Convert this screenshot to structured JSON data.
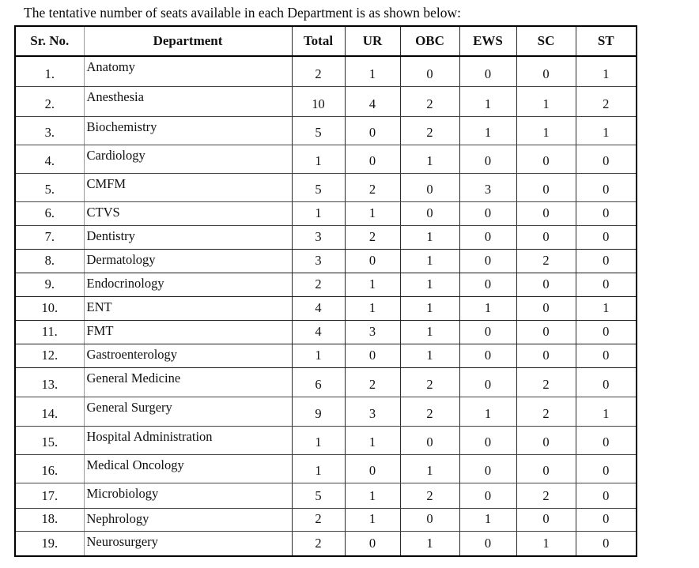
{
  "title": "The tentative number of seats available in each Department is as shown below:",
  "table": {
    "columns": [
      "Sr. No.",
      "Department",
      "Total",
      "UR",
      "OBC",
      "EWS",
      "SC",
      "ST"
    ],
    "rows": [
      {
        "sr": "1.",
        "department": "Anatomy",
        "values": [
          "2",
          "1",
          "0",
          "0",
          "0",
          "1"
        ]
      },
      {
        "sr": "2.",
        "department": "Anesthesia",
        "values": [
          "10",
          "4",
          "2",
          "1",
          "1",
          "2"
        ]
      },
      {
        "sr": "3.",
        "department": "Biochemistry",
        "values": [
          "5",
          "0",
          "2",
          "1",
          "1",
          "1"
        ]
      },
      {
        "sr": "4.",
        "department": "Cardiology",
        "values": [
          "1",
          "0",
          "1",
          "0",
          "0",
          "0"
        ]
      },
      {
        "sr": "5.",
        "department": "CMFM",
        "values": [
          "5",
          "2",
          "0",
          "3",
          "0",
          "0"
        ]
      },
      {
        "sr": "6.",
        "department": "CTVS",
        "values": [
          "1",
          "1",
          "0",
          "0",
          "0",
          "0"
        ]
      },
      {
        "sr": "7.",
        "department": "Dentistry",
        "values": [
          "3",
          "2",
          "1",
          "0",
          "0",
          "0"
        ]
      },
      {
        "sr": "8.",
        "department": "Dermatology",
        "values": [
          "3",
          "0",
          "1",
          "0",
          "2",
          "0"
        ]
      },
      {
        "sr": "9.",
        "department": "Endocrinology",
        "values": [
          "2",
          "1",
          "1",
          "0",
          "0",
          "0"
        ]
      },
      {
        "sr": "10.",
        "department": "ENT",
        "values": [
          "4",
          "1",
          "1",
          "1",
          "0",
          "1"
        ]
      },
      {
        "sr": "11.",
        "department": "FMT",
        "values": [
          "4",
          "3",
          "1",
          "0",
          "0",
          "0"
        ]
      },
      {
        "sr": "12.",
        "department": "Gastroenterology",
        "values": [
          "1",
          "0",
          "1",
          "0",
          "0",
          "0"
        ]
      },
      {
        "sr": "13.",
        "department": "General Medicine",
        "values": [
          "6",
          "2",
          "2",
          "0",
          "2",
          "0"
        ]
      },
      {
        "sr": "14.",
        "department": "General Surgery",
        "values": [
          "9",
          "3",
          "2",
          "1",
          "2",
          "1"
        ]
      },
      {
        "sr": "15.",
        "department": "Hospital Administration",
        "values": [
          "1",
          "1",
          "0",
          "0",
          "0",
          "0"
        ]
      },
      {
        "sr": "16.",
        "department": "Medical Oncology",
        "values": [
          "1",
          "0",
          "1",
          "0",
          "0",
          "0"
        ]
      },
      {
        "sr": "17.",
        "department": "Microbiology",
        "values": [
          "5",
          "1",
          "2",
          "0",
          "2",
          "0"
        ]
      },
      {
        "sr": "18.",
        "department": "Nephrology",
        "values": [
          "2",
          "1",
          "0",
          "1",
          "0",
          "0"
        ]
      },
      {
        "sr": "19.",
        "department": "Neurosurgery",
        "values": [
          "2",
          "0",
          "1",
          "0",
          "1",
          "0"
        ]
      }
    ]
  }
}
